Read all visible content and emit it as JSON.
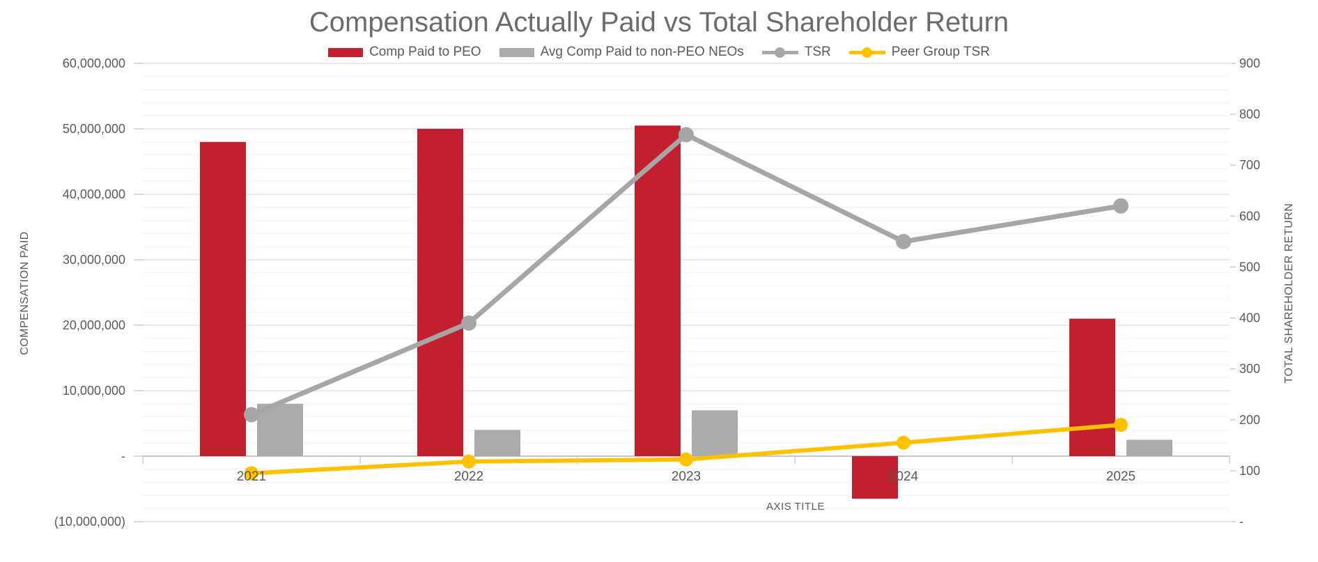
{
  "title": "Compensation Actually Paid vs Total Shareholder Return",
  "legend": [
    {
      "label": "Comp Paid to PEO",
      "type": "bar",
      "color": "#c2202e"
    },
    {
      "label": "Avg Comp Paid to non-PEO NEOs",
      "type": "bar",
      "color": "#ababab"
    },
    {
      "label": "TSR",
      "type": "line",
      "color": "#a6a6a6"
    },
    {
      "label": "Peer Group TSR",
      "type": "line",
      "color": "#ffc000"
    }
  ],
  "axes": {
    "left": {
      "title": "COMPENSATION PAID",
      "tick_labels": [
        "60,000,000",
        "50,000,000",
        "40,000,000",
        "30,000,000",
        "20,000,000",
        "10,000,000",
        "-",
        "(10,000,000)"
      ]
    },
    "right": {
      "title": "TOTAL SHAREHOLDER RETURN",
      "tick_labels": [
        "900",
        "800",
        "700",
        "600",
        "500",
        "400",
        "300",
        "200",
        "100",
        "-"
      ]
    },
    "x": {
      "title": "AXIS TITLE",
      "categories": [
        "2021",
        "2022",
        "2023",
        "2024",
        "2025"
      ]
    }
  },
  "chart_data": {
    "type": "combo",
    "categories": [
      "2021",
      "2022",
      "2023",
      "2024",
      "2025"
    ],
    "series": [
      {
        "name": "Comp Paid to PEO",
        "type": "bar",
        "axis": "left",
        "color": "#c2202e",
        "values": [
          48000000,
          50000000,
          50500000,
          -6500000,
          21000000
        ]
      },
      {
        "name": "Avg Comp Paid to non-PEO NEOs",
        "type": "bar",
        "axis": "left",
        "color": "#ababab",
        "values": [
          8000000,
          4000000,
          7000000,
          0,
          2500000
        ]
      },
      {
        "name": "TSR",
        "type": "line",
        "axis": "right",
        "color": "#a6a6a6",
        "values": [
          210,
          390,
          760,
          550,
          620
        ]
      },
      {
        "name": "Peer Group TSR",
        "type": "line",
        "axis": "right",
        "color": "#ffc000",
        "values": [
          95,
          118,
          122,
          155,
          190
        ]
      }
    ],
    "left_axis": {
      "min": -10000000,
      "max": 60000000,
      "major": 10000000,
      "minor": 2000000,
      "zero_baseline": true
    },
    "right_axis": {
      "min": 0,
      "max": 900,
      "major": 100
    },
    "gridlines": "major+minor",
    "legend_position": "top",
    "colors": {
      "major_grid": "#d9d9d9",
      "minor_grid": "#f1f1f1",
      "axis_line": "#bfbfbf",
      "tick_text": "#595959",
      "title_text": "#6b6b6b"
    }
  }
}
